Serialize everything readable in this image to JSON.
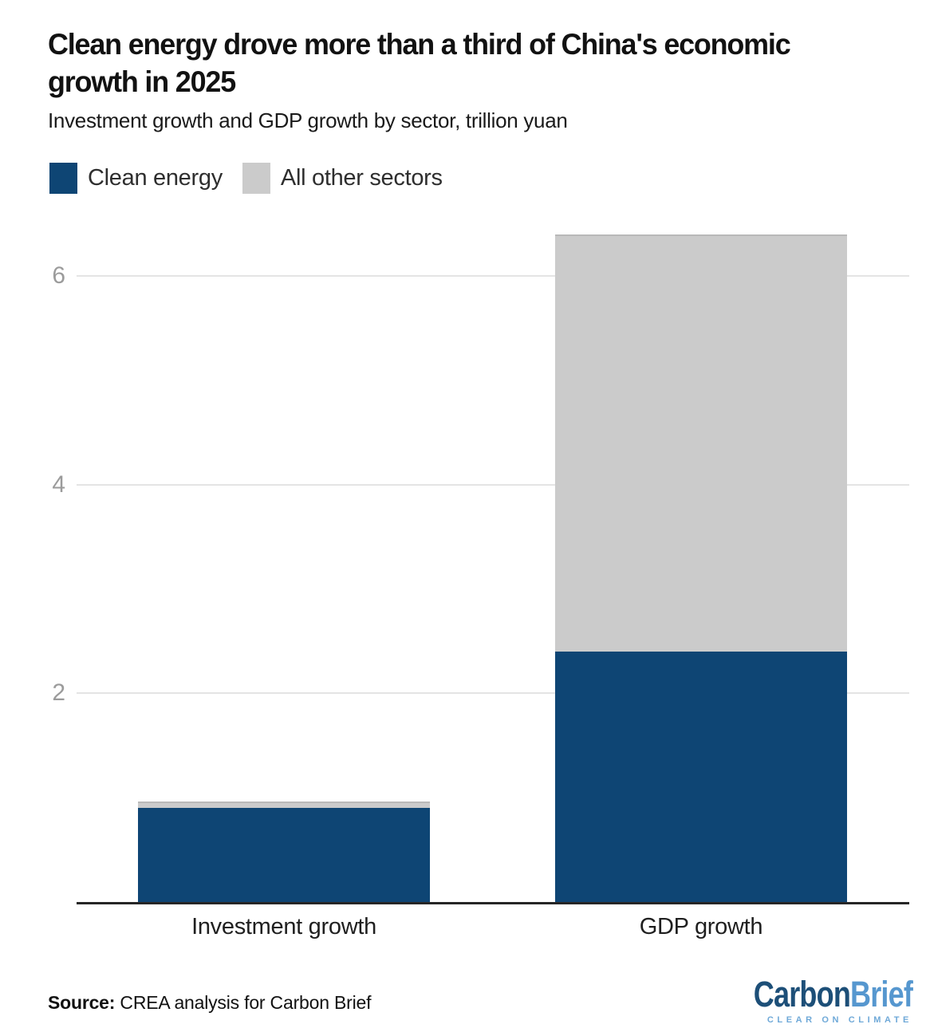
{
  "header": {
    "title": "Clean energy drove more than a third of China's economic growth in 2025",
    "title_lines": [
      "Clean energy drove more than a third of China's economic",
      "growth in 2025"
    ],
    "subtitle": "Investment growth and GDP growth by sector, trillion yuan"
  },
  "chart_data": {
    "type": "bar",
    "stacked": true,
    "categories": [
      "Investment growth",
      "GDP growth"
    ],
    "series": [
      {
        "name": "Clean energy",
        "color": "#0e4574",
        "values": [
          0.9,
          2.4
        ]
      },
      {
        "name": "All other sectors",
        "color": "#cbcbcb",
        "values": [
          0.06,
          4.0
        ]
      }
    ],
    "title": "Clean energy drove more than a third of China's economic growth in 2025",
    "subtitle": "Investment growth and GDP growth by sector, trillion yuan",
    "xlabel": "",
    "ylabel": "",
    "yticks": [
      2,
      4,
      6
    ],
    "ylim": [
      0,
      6.5
    ],
    "grid": true,
    "legend_position": "top-left",
    "colors": {
      "gridline": "#e4e4e4",
      "tick_label": "#9b9b9b",
      "axis_line": "#262626"
    }
  },
  "footer": {
    "source_label": "Source:",
    "source_text": " CREA analysis for Carbon Brief",
    "logo": {
      "word1": "Carbon",
      "word2": "Brief",
      "tagline": "CLEAR ON CLIMATE",
      "word1_color": "#1d4f78",
      "word2_color": "#5697cf",
      "tagline_color": "#6fa9d8"
    }
  }
}
